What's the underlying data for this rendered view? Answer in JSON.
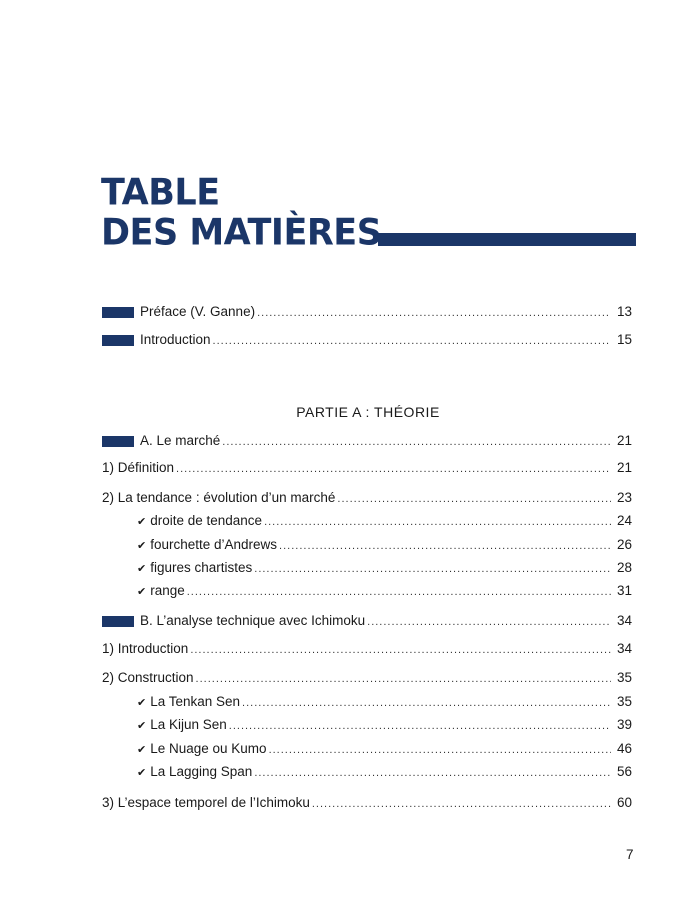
{
  "header": {
    "title_line1": "TABLE",
    "title_line2": "DES MATIÈRES",
    "accent_color": "#1b3668"
  },
  "intro_entries": [
    {
      "label": "Préface (V. Ganne)",
      "page": "13",
      "marker": true
    },
    {
      "label": "Introduction",
      "page": "15",
      "marker": true
    }
  ],
  "part_a": {
    "heading": "PARTIE A : THÉORIE",
    "entries": [
      {
        "label": "A. Le marché",
        "page": "21",
        "kind": "section"
      },
      {
        "label": "1) Définition",
        "page": "21",
        "kind": "chapter"
      },
      {
        "label": "2) La tendance : évolution d’un marché",
        "page": "23",
        "kind": "chapter"
      },
      {
        "label": "droite de tendance",
        "page": "24",
        "kind": "sub"
      },
      {
        "label": "fourchette d’Andrews",
        "page": "26",
        "kind": "sub"
      },
      {
        "label": "figures chartistes",
        "page": "28",
        "kind": "sub"
      },
      {
        "label": "range",
        "page": "31",
        "kind": "sub"
      },
      {
        "label": "B. L’analyse technique avec Ichimoku",
        "page": "34",
        "kind": "section"
      },
      {
        "label": "1) Introduction",
        "page": "34",
        "kind": "chapter"
      },
      {
        "label": "2) Construction",
        "page": "35",
        "kind": "chapter"
      },
      {
        "label": "La Tenkan Sen",
        "page": "35",
        "kind": "sub"
      },
      {
        "label": "La Kijun Sen",
        "page": "39",
        "kind": "sub"
      },
      {
        "label": "Le Nuage ou Kumo",
        "page": "46",
        "kind": "sub"
      },
      {
        "label": "La Lagging Span",
        "page": "56",
        "kind": "sub"
      },
      {
        "label": "3) L’espace temporel de l’Ichimoku",
        "page": "60",
        "kind": "chapter"
      }
    ]
  },
  "footer": {
    "page_number": "7"
  },
  "icons": {
    "section_marker": "blue-rectangle",
    "sub_bullet": "checkmark-icon"
  }
}
